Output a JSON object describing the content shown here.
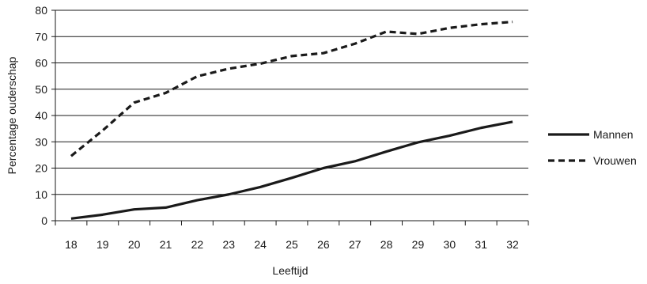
{
  "chart_data": {
    "type": "line",
    "title": "",
    "xlabel": "Leeftijd",
    "ylabel": "Percentage ouderschap",
    "x": [
      18,
      19,
      20,
      21,
      22,
      23,
      24,
      25,
      26,
      27,
      28,
      29,
      30,
      31,
      32
    ],
    "ylim": [
      0,
      80
    ],
    "yticks": [
      0,
      10,
      20,
      30,
      40,
      50,
      60,
      70,
      80
    ],
    "grid": "horizontal",
    "legend_position": "right",
    "series": [
      {
        "name": "Mannen",
        "style": "solid",
        "color": "#1a1a1a",
        "values": [
          0.8,
          2.3,
          4.3,
          5.0,
          7.8,
          10.0,
          12.8,
          16.3,
          20.0,
          22.6,
          26.3,
          29.8,
          32.3,
          35.3,
          37.6
        ]
      },
      {
        "name": "Vrouwen",
        "style": "dashed",
        "color": "#1a1a1a",
        "values": [
          24.6,
          34.3,
          44.9,
          48.6,
          54.9,
          57.8,
          59.7,
          62.6,
          63.7,
          67.3,
          71.9,
          71.0,
          73.3,
          74.7,
          75.6
        ]
      }
    ]
  }
}
